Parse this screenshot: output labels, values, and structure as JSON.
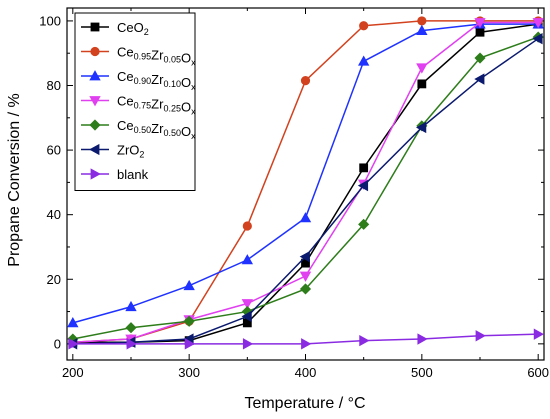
{
  "chart_data": {
    "type": "line",
    "xlabel": "Temperature / °C",
    "ylabel": "Propane Conversion / %",
    "xlim": [
      195,
      605
    ],
    "ylim": [
      -5,
      104
    ],
    "xticks": [
      200,
      300,
      400,
      500,
      600
    ],
    "yticks": [
      0,
      20,
      40,
      60,
      80,
      100
    ],
    "grid": false,
    "legend_position": "top-left",
    "x": [
      200,
      250,
      300,
      350,
      400,
      450,
      500,
      550,
      600
    ],
    "series": [
      {
        "name": "CeO2",
        "name_parts": [
          {
            "text": "CeO",
            "sub": false
          },
          {
            "text": "2",
            "sub": true
          }
        ],
        "color": "#000000",
        "marker": "square",
        "values": [
          0.5,
          0.5,
          1,
          6.5,
          25,
          54.5,
          80.5,
          96.5,
          99
        ]
      },
      {
        "name": "Ce0.95Zr0.05Ox",
        "name_parts": [
          {
            "text": "Ce",
            "sub": false
          },
          {
            "text": "0.95",
            "sub": true
          },
          {
            "text": "Zr",
            "sub": false
          },
          {
            "text": "0.05",
            "sub": true
          },
          {
            "text": "O",
            "sub": false
          },
          {
            "text": "x",
            "sub": true
          }
        ],
        "color": "#d2421f",
        "marker": "circle",
        "values": [
          0.5,
          1.5,
          7,
          36.5,
          81.5,
          98.5,
          100,
          100,
          100
        ]
      },
      {
        "name": "Ce0.90Zr0.10Ox",
        "name_parts": [
          {
            "text": "Ce",
            "sub": false
          },
          {
            "text": "0.90",
            "sub": true
          },
          {
            "text": "Zr",
            "sub": false
          },
          {
            "text": "0.10",
            "sub": true
          },
          {
            "text": "O",
            "sub": false
          },
          {
            "text": "x",
            "sub": true
          }
        ],
        "color": "#1f32ff",
        "marker": "triangle-up",
        "values": [
          6.5,
          11.5,
          18,
          26,
          39,
          87.5,
          97,
          99,
          99
        ]
      },
      {
        "name": "Ce0.75Zr0.25Ox",
        "name_parts": [
          {
            "text": "Ce",
            "sub": false
          },
          {
            "text": "0.75",
            "sub": true
          },
          {
            "text": "Zr",
            "sub": false
          },
          {
            "text": "0.25",
            "sub": true
          },
          {
            "text": "O",
            "sub": false
          },
          {
            "text": "x",
            "sub": true
          }
        ],
        "color": "#e040f0",
        "marker": "triangle-down",
        "values": [
          0.5,
          1.5,
          7.5,
          12.5,
          21,
          49.5,
          85.5,
          99.5,
          99.5
        ]
      },
      {
        "name": "Ce0.50Zr0.50Ox",
        "name_parts": [
          {
            "text": "Ce",
            "sub": false
          },
          {
            "text": "0.50",
            "sub": true
          },
          {
            "text": "Zr",
            "sub": false
          },
          {
            "text": "0.50",
            "sub": true
          },
          {
            "text": "O",
            "sub": false
          },
          {
            "text": "x",
            "sub": true
          }
        ],
        "color": "#2e7d1b",
        "marker": "diamond",
        "values": [
          1.5,
          5,
          7,
          10,
          17,
          37,
          67.5,
          88.5,
          95
        ]
      },
      {
        "name": "ZrO2",
        "name_parts": [
          {
            "text": "ZrO",
            "sub": false
          },
          {
            "text": "2",
            "sub": true
          }
        ],
        "color": "#0b1a6e",
        "marker": "triangle-left",
        "values": [
          0,
          0.5,
          1.5,
          8.5,
          27,
          49,
          67,
          82,
          94.5
        ]
      },
      {
        "name": "blank",
        "name_parts": [
          {
            "text": "blank",
            "sub": false
          }
        ],
        "color": "#8a2be2",
        "marker": "triangle-right",
        "values": [
          0,
          0,
          0,
          0,
          0,
          1,
          1.5,
          2.5,
          3
        ]
      }
    ]
  }
}
